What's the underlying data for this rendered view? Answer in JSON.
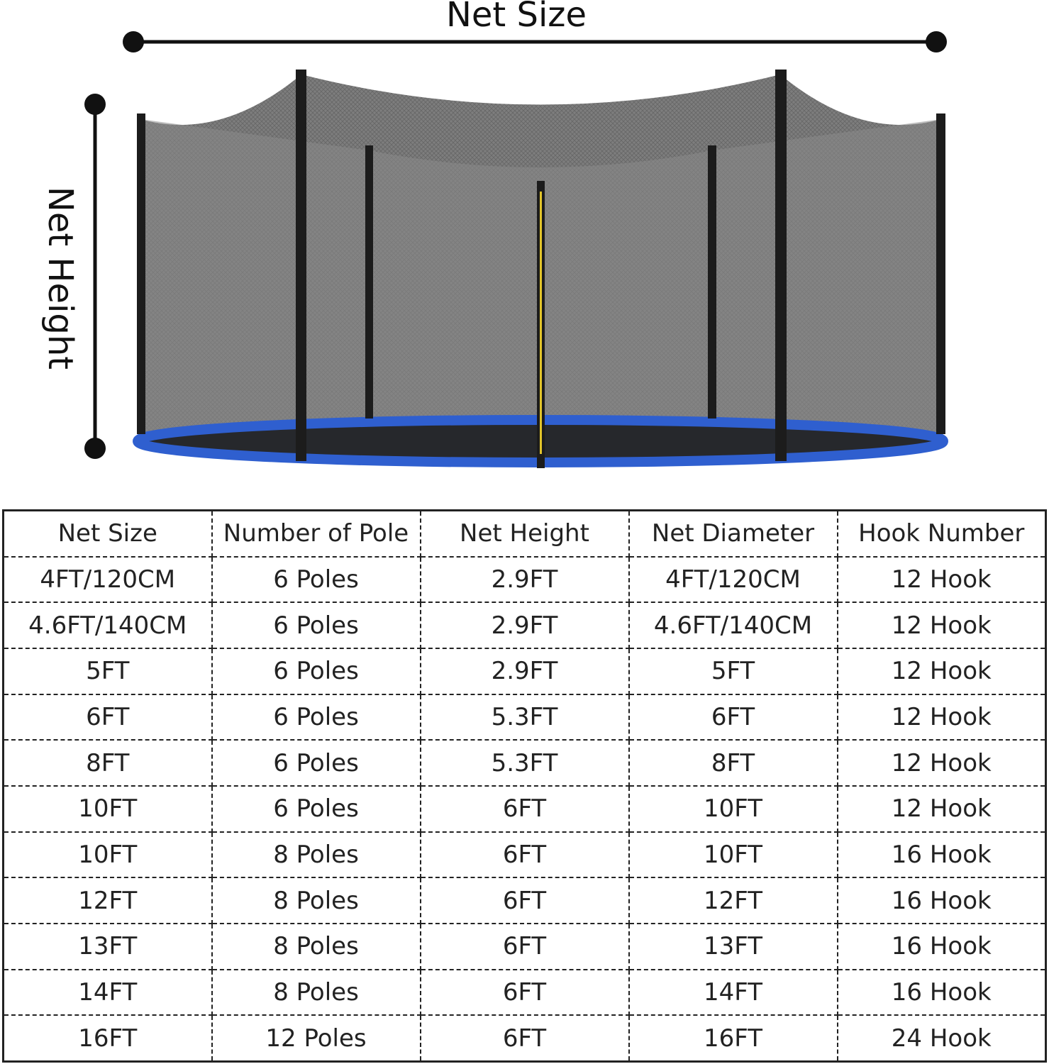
{
  "labels": {
    "net_size": "Net Size",
    "net_height": "Net Height"
  },
  "table": {
    "header": [
      "Net Size",
      "Number of Pole",
      "Net Height",
      "Net Diameter",
      "Hook Number"
    ],
    "rows": [
      [
        "4FT/120CM",
        "6 Poles",
        "2.9FT",
        "4FT/120CM",
        "12 Hook"
      ],
      [
        "4.6FT/140CM",
        "6 Poles",
        "2.9FT",
        "4.6FT/140CM",
        "12 Hook"
      ],
      [
        "5FT",
        "6 Poles",
        "2.9FT",
        "5FT",
        "12 Hook"
      ],
      [
        "6FT",
        "6 Poles",
        "5.3FT",
        "6FT",
        "12 Hook"
      ],
      [
        "8FT",
        "6 Poles",
        "5.3FT",
        "8FT",
        "12 Hook"
      ],
      [
        "10FT",
        "6 Poles",
        "6FT",
        "10FT",
        "12 Hook"
      ],
      [
        "10FT",
        "8 Poles",
        "6FT",
        "10FT",
        "16 Hook"
      ],
      [
        "12FT",
        "8 Poles",
        "6FT",
        "12FT",
        "16 Hook"
      ],
      [
        "13FT",
        "8 Poles",
        "6FT",
        "13FT",
        "16 Hook"
      ],
      [
        "14FT",
        "8 Poles",
        "6FT",
        "14FT",
        "16 Hook"
      ],
      [
        "16FT",
        "12 Poles",
        "6FT",
        "16FT",
        "24 Hook"
      ]
    ]
  }
}
